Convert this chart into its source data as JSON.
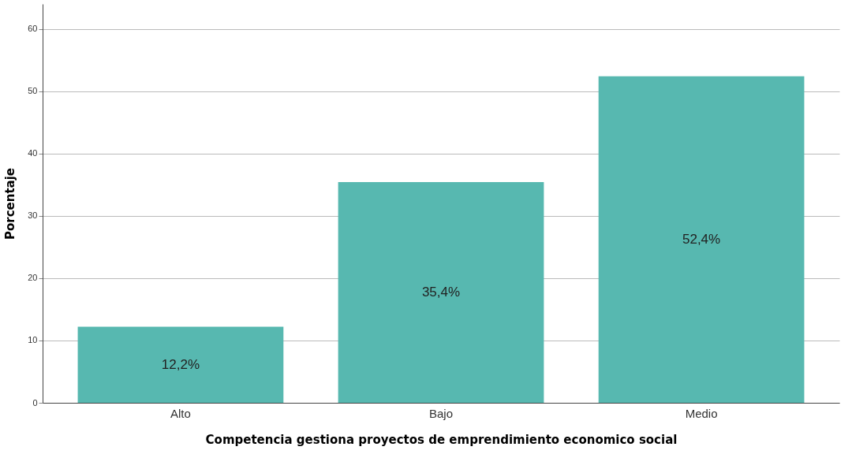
{
  "chart_data": {
    "type": "bar",
    "xlabel": "Competencia gestiona proyectos de emprendimiento economico social",
    "ylabel": "Porcentaje",
    "categories": [
      "Alto",
      "Bajo",
      "Medio"
    ],
    "values": [
      12.2,
      35.4,
      52.4
    ],
    "value_labels": [
      "12,2%",
      "35,4%",
      "52,4%"
    ],
    "color": "#57b8b0",
    "ylim": [
      0,
      64
    ],
    "yticks": [
      0,
      10,
      20,
      30,
      40,
      50,
      60
    ],
    "grid": "y"
  }
}
